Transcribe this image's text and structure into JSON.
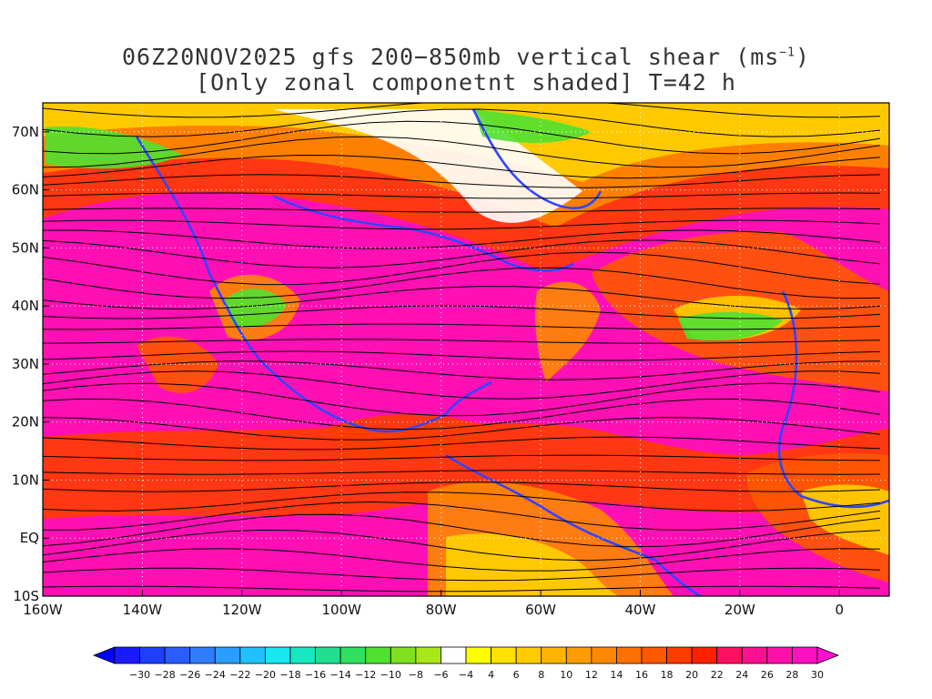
{
  "title": {
    "line1_prefix": "06Z20NOV2025 gfs 200−850mb vertical shear (ms",
    "line1_sup": "−1",
    "line1_suffix": ")",
    "line2": "[Only zonal componetnt shaded] T=42 h"
  },
  "axes": {
    "lon_labels": [
      "160W",
      "140W",
      "120W",
      "100W",
      "80W",
      "60W",
      "40W",
      "20W",
      "0"
    ],
    "lat_labels": [
      "70N",
      "60N",
      "50N",
      "40N",
      "30N",
      "20N",
      "10N",
      "EQ",
      "10S"
    ],
    "lon_values": [
      -160,
      -140,
      -120,
      -100,
      -80,
      -60,
      -40,
      -20,
      0
    ],
    "lat_values": [
      70,
      60,
      50,
      40,
      30,
      20,
      10,
      0,
      -10
    ],
    "lon_range": [
      -160,
      10
    ],
    "lat_range": [
      -10,
      75
    ]
  },
  "colorbar": {
    "labels": [
      "-30",
      "-28",
      "-26",
      "-24",
      "-22",
      "-20",
      "-18",
      "-16",
      "-14",
      "-12",
      "-10",
      "-8",
      "-6",
      "-4",
      "4",
      "6",
      "8",
      "10",
      "12",
      "14",
      "16",
      "18",
      "20",
      "22",
      "24",
      "26",
      "28",
      "30"
    ],
    "colors": [
      "#1a1aff",
      "#1f3fff",
      "#2a5cff",
      "#2f7cff",
      "#2a9dff",
      "#20c0ff",
      "#18e8f0",
      "#18e8c0",
      "#20e090",
      "#30e060",
      "#50e030",
      "#80e020",
      "#a8e818",
      "#ffffff",
      "#ffff00",
      "#ffe000",
      "#ffcc00",
      "#ffb400",
      "#ff9c00",
      "#ff8800",
      "#ff7000",
      "#ff5800",
      "#ff3c00",
      "#ff2000",
      "#ff1060",
      "#ff1090",
      "#ff10a8",
      "#ff10c0"
    ],
    "low_end": "#0000ff",
    "high_end": "#ff10d0"
  }
}
